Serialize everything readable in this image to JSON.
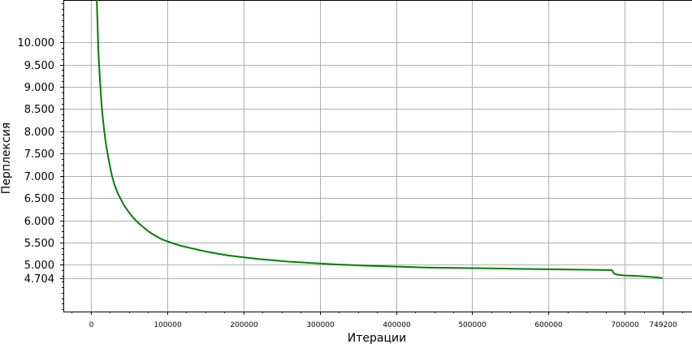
{
  "chart_data": {
    "type": "line",
    "xlabel": "Итерации",
    "ylabel": "Перплексия",
    "xlim": [
      -36000,
      788000
    ],
    "ylim": [
      3.95,
      10.95
    ],
    "x_ticks": [
      {
        "value": 0,
        "label": "0"
      },
      {
        "value": 100000,
        "label": "100000"
      },
      {
        "value": 200000,
        "label": "200000"
      },
      {
        "value": 300000,
        "label": "300000"
      },
      {
        "value": 400000,
        "label": "400000"
      },
      {
        "value": 500000,
        "label": "500000"
      },
      {
        "value": 600000,
        "label": "600000"
      },
      {
        "value": 700000,
        "label": "700000"
      },
      {
        "value": 749200,
        "label": "749200"
      }
    ],
    "y_ticks": [
      {
        "value": 4.704,
        "label": "4.704"
      },
      {
        "value": 5.0,
        "label": "5.000"
      },
      {
        "value": 5.5,
        "label": "5.500"
      },
      {
        "value": 6.0,
        "label": "6.000"
      },
      {
        "value": 6.5,
        "label": "6.500"
      },
      {
        "value": 7.0,
        "label": "7.000"
      },
      {
        "value": 7.5,
        "label": "7.500"
      },
      {
        "value": 8.0,
        "label": "8.000"
      },
      {
        "value": 8.5,
        "label": "8.500"
      },
      {
        "value": 9.0,
        "label": "9.000"
      },
      {
        "value": 9.5,
        "label": "9.500"
      },
      {
        "value": 10.0,
        "label": "10.000"
      }
    ],
    "grid": true,
    "series": [
      {
        "color": "#008000",
        "x": [
          7500,
          8500,
          10000,
          12000,
          14000,
          16000,
          18000,
          20000,
          22000,
          25000,
          28000,
          31000,
          35000,
          40000,
          45000,
          50000,
          55000,
          60000,
          65000,
          70000,
          75000,
          80000,
          85000,
          90000,
          95000,
          100000,
          110000,
          120000,
          130000,
          140000,
          150000,
          160000,
          170000,
          180000,
          190000,
          200000,
          220000,
          240000,
          260000,
          280000,
          300000,
          320000,
          340000,
          360000,
          380000,
          400000,
          420000,
          440000,
          460000,
          480000,
          500000,
          520000,
          540000,
          560000,
          580000,
          600000,
          620000,
          640000,
          660000,
          680000,
          683000,
          686000,
          690000,
          700000,
          710000,
          720000,
          730000,
          740000,
          749200
        ],
        "y": [
          11.1,
          10.6,
          9.75,
          9.15,
          8.62,
          8.25,
          7.95,
          7.7,
          7.5,
          7.22,
          6.98,
          6.8,
          6.62,
          6.45,
          6.3,
          6.18,
          6.07,
          5.98,
          5.9,
          5.83,
          5.76,
          5.7,
          5.65,
          5.6,
          5.56,
          5.53,
          5.47,
          5.42,
          5.38,
          5.34,
          5.3,
          5.27,
          5.24,
          5.21,
          5.19,
          5.17,
          5.13,
          5.1,
          5.07,
          5.05,
          5.03,
          5.01,
          4.995,
          4.98,
          4.97,
          4.96,
          4.95,
          4.94,
          4.935,
          4.93,
          4.925,
          4.92,
          4.915,
          4.91,
          4.905,
          4.9,
          4.895,
          4.89,
          4.886,
          4.883,
          4.88,
          4.8,
          4.78,
          4.76,
          4.755,
          4.745,
          4.735,
          4.72,
          4.704
        ]
      }
    ]
  }
}
